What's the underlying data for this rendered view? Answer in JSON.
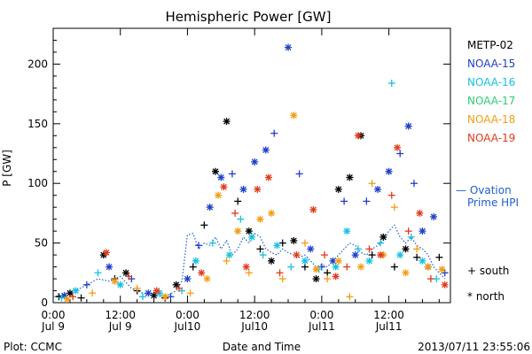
{
  "chart_data": {
    "type": "scatter",
    "title": "Hemispheric Power [GW]",
    "ylabel": "P [GW]",
    "xlabel": "Date and Time",
    "ylim": [
      0,
      230
    ],
    "yticks": [
      0,
      50,
      100,
      150,
      200
    ],
    "xlim_hours": [
      0,
      71
    ],
    "xticks": [
      {
        "hour": 0,
        "line1": "0:00",
        "line2": "Jul 9"
      },
      {
        "hour": 12,
        "line1": "12:00",
        "line2": "Jul 9"
      },
      {
        "hour": 24,
        "line1": "0:00",
        "line2": "Jul10"
      },
      {
        "hour": 36,
        "line1": "12:00",
        "line2": "Jul10"
      },
      {
        "hour": 48,
        "line1": "0:00",
        "line2": "Jul11"
      },
      {
        "hour": 60,
        "line1": "12:00",
        "line2": "Jul11"
      }
    ],
    "legend": {
      "placement": "right",
      "markers": [
        {
          "symbol": "+",
          "label": "south"
        },
        {
          "symbol": "*",
          "label": "north"
        }
      ],
      "ovation_label_line1": "— Ovation",
      "ovation_label_line2": "Prime HPI"
    },
    "series": [
      {
        "name": "METP-02",
        "color": "#000000",
        "points": [
          {
            "x": 1,
            "y": 5,
            "m": "+"
          },
          {
            "x": 3,
            "y": 8,
            "m": "*"
          },
          {
            "x": 5,
            "y": 4,
            "m": "+"
          },
          {
            "x": 9,
            "y": 40,
            "m": "*"
          },
          {
            "x": 11,
            "y": 20,
            "m": "+"
          },
          {
            "x": 13,
            "y": 25,
            "m": "*"
          },
          {
            "x": 15,
            "y": 10,
            "m": "+"
          },
          {
            "x": 18,
            "y": 6,
            "m": "*"
          },
          {
            "x": 20,
            "y": 4,
            "m": "+"
          },
          {
            "x": 22,
            "y": 15,
            "m": "*"
          },
          {
            "x": 25,
            "y": 30,
            "m": "+"
          },
          {
            "x": 27,
            "y": 65,
            "m": "+"
          },
          {
            "x": 29,
            "y": 110,
            "m": "*"
          },
          {
            "x": 31,
            "y": 152,
            "m": "*"
          },
          {
            "x": 33,
            "y": 85,
            "m": "+"
          },
          {
            "x": 35,
            "y": 60,
            "m": "*"
          },
          {
            "x": 37,
            "y": 45,
            "m": "+"
          },
          {
            "x": 39,
            "y": 35,
            "m": "*"
          },
          {
            "x": 41,
            "y": 50,
            "m": "+"
          },
          {
            "x": 43,
            "y": 52,
            "m": "*"
          },
          {
            "x": 45,
            "y": 30,
            "m": "+"
          },
          {
            "x": 47,
            "y": 20,
            "m": "*"
          },
          {
            "x": 49,
            "y": 25,
            "m": "+"
          },
          {
            "x": 51,
            "y": 95,
            "m": "*"
          },
          {
            "x": 53,
            "y": 105,
            "m": "*"
          },
          {
            "x": 55,
            "y": 140,
            "m": "*"
          },
          {
            "x": 57,
            "y": 40,
            "m": "+"
          },
          {
            "x": 59,
            "y": 55,
            "m": "*"
          },
          {
            "x": 61,
            "y": 30,
            "m": "+"
          },
          {
            "x": 63,
            "y": 45,
            "m": "*"
          },
          {
            "x": 65,
            "y": 38,
            "m": "+"
          },
          {
            "x": 67,
            "y": 30,
            "m": "*"
          },
          {
            "x": 69,
            "y": 38,
            "m": "+"
          }
        ]
      },
      {
        "name": "NOAA-15",
        "color": "#1f3fc8",
        "points": [
          {
            "x": 2,
            "y": 6,
            "m": "*"
          },
          {
            "x": 6,
            "y": 15,
            "m": "+"
          },
          {
            "x": 10,
            "y": 30,
            "m": "*"
          },
          {
            "x": 14,
            "y": 20,
            "m": "+"
          },
          {
            "x": 17,
            "y": 8,
            "m": "*"
          },
          {
            "x": 21,
            "y": 5,
            "m": "+"
          },
          {
            "x": 24,
            "y": 20,
            "m": "*"
          },
          {
            "x": 26,
            "y": 48,
            "m": "+"
          },
          {
            "x": 28,
            "y": 80,
            "m": "*"
          },
          {
            "x": 30,
            "y": 105,
            "m": "*"
          },
          {
            "x": 32,
            "y": 108,
            "m": "+"
          },
          {
            "x": 34,
            "y": 95,
            "m": "*"
          },
          {
            "x": 36,
            "y": 118,
            "m": "*"
          },
          {
            "x": 38,
            "y": 128,
            "m": "*"
          },
          {
            "x": 39.5,
            "y": 142,
            "m": "+"
          },
          {
            "x": 42,
            "y": 214,
            "m": "*"
          },
          {
            "x": 44,
            "y": 108,
            "m": "+"
          },
          {
            "x": 46,
            "y": 45,
            "m": "*"
          },
          {
            "x": 48,
            "y": 30,
            "m": "+"
          },
          {
            "x": 50,
            "y": 35,
            "m": "*"
          },
          {
            "x": 52,
            "y": 85,
            "m": "+"
          },
          {
            "x": 54,
            "y": 40,
            "m": "*"
          },
          {
            "x": 56,
            "y": 85,
            "m": "+"
          },
          {
            "x": 58,
            "y": 95,
            "m": "*"
          },
          {
            "x": 60,
            "y": 110,
            "m": "*"
          },
          {
            "x": 62,
            "y": 125,
            "m": "+"
          },
          {
            "x": 63.5,
            "y": 148,
            "m": "*"
          },
          {
            "x": 64.5,
            "y": 100,
            "m": "+"
          },
          {
            "x": 66,
            "y": 60,
            "m": "*"
          },
          {
            "x": 68,
            "y": 72,
            "m": "*"
          },
          {
            "x": 70,
            "y": 25,
            "m": "+"
          }
        ]
      },
      {
        "name": "NOAA-16",
        "color": "#17c1e0",
        "points": [
          {
            "x": 1.5,
            "y": 4,
            "m": "+"
          },
          {
            "x": 4,
            "y": 10,
            "m": "*"
          },
          {
            "x": 8,
            "y": 25,
            "m": "+"
          },
          {
            "x": 12,
            "y": 15,
            "m": "*"
          },
          {
            "x": 16,
            "y": 5,
            "m": "+"
          },
          {
            "x": 19,
            "y": 8,
            "m": "*"
          },
          {
            "x": 23,
            "y": 10,
            "m": "+"
          },
          {
            "x": 25.5,
            "y": 35,
            "m": "*"
          },
          {
            "x": 28.5,
            "y": 50,
            "m": "+"
          },
          {
            "x": 31.5,
            "y": 40,
            "m": "*"
          },
          {
            "x": 33.5,
            "y": 70,
            "m": "+"
          },
          {
            "x": 35.5,
            "y": 55,
            "m": "*"
          },
          {
            "x": 37.5,
            "y": 40,
            "m": "+"
          },
          {
            "x": 40,
            "y": 48,
            "m": "*"
          },
          {
            "x": 42.5,
            "y": 30,
            "m": "+"
          },
          {
            "x": 45,
            "y": 35,
            "m": "*"
          },
          {
            "x": 47.5,
            "y": 28,
            "m": "+"
          },
          {
            "x": 50.5,
            "y": 30,
            "m": "*"
          },
          {
            "x": 52.5,
            "y": 60,
            "m": "*"
          },
          {
            "x": 54.5,
            "y": 45,
            "m": "+"
          },
          {
            "x": 56.5,
            "y": 35,
            "m": "*"
          },
          {
            "x": 58.5,
            "y": 50,
            "m": "+"
          },
          {
            "x": 60.5,
            "y": 184,
            "m": "+"
          },
          {
            "x": 62,
            "y": 40,
            "m": "*"
          },
          {
            "x": 64,
            "y": 55,
            "m": "+"
          },
          {
            "x": 66,
            "y": 35,
            "m": "*"
          },
          {
            "x": 68.5,
            "y": 20,
            "m": "+"
          }
        ]
      },
      {
        "name": "NOAA-17",
        "color": "#2ecc71",
        "points": []
      },
      {
        "name": "NOAA-18",
        "color": "#f39c12",
        "points": [
          {
            "x": 2.5,
            "y": 3,
            "m": "*"
          },
          {
            "x": 7,
            "y": 8,
            "m": "+"
          },
          {
            "x": 11,
            "y": 18,
            "m": "*"
          },
          {
            "x": 15,
            "y": 12,
            "m": "+"
          },
          {
            "x": 20,
            "y": 5,
            "m": "*"
          },
          {
            "x": 24.5,
            "y": 8,
            "m": "+"
          },
          {
            "x": 27.5,
            "y": 20,
            "m": "*"
          },
          {
            "x": 29.5,
            "y": 90,
            "m": "*"
          },
          {
            "x": 31,
            "y": 35,
            "m": "+"
          },
          {
            "x": 33,
            "y": 60,
            "m": "*"
          },
          {
            "x": 35,
            "y": 25,
            "m": "+"
          },
          {
            "x": 37,
            "y": 70,
            "m": "*"
          },
          {
            "x": 39,
            "y": 75,
            "m": "*"
          },
          {
            "x": 41,
            "y": 20,
            "m": "+"
          },
          {
            "x": 43,
            "y": 157,
            "m": "*"
          },
          {
            "x": 45,
            "y": 50,
            "m": "+"
          },
          {
            "x": 47,
            "y": 28,
            "m": "*"
          },
          {
            "x": 49,
            "y": 20,
            "m": "+"
          },
          {
            "x": 51,
            "y": 35,
            "m": "*"
          },
          {
            "x": 53,
            "y": 5,
            "m": "+"
          },
          {
            "x": 55,
            "y": 30,
            "m": "*"
          },
          {
            "x": 57,
            "y": 100,
            "m": "+"
          },
          {
            "x": 59,
            "y": 40,
            "m": "*"
          },
          {
            "x": 61,
            "y": 80,
            "m": "+"
          },
          {
            "x": 63,
            "y": 25,
            "m": "*"
          },
          {
            "x": 65,
            "y": 45,
            "m": "+"
          },
          {
            "x": 67,
            "y": 30,
            "m": "*"
          },
          {
            "x": 69.5,
            "y": 28,
            "m": "*"
          }
        ]
      },
      {
        "name": "NOAA-19",
        "color": "#e03a1c",
        "points": [
          {
            "x": 3.5,
            "y": 5,
            "m": "+"
          },
          {
            "x": 9.5,
            "y": 42,
            "m": "*"
          },
          {
            "x": 13.5,
            "y": 22,
            "m": "+"
          },
          {
            "x": 18.5,
            "y": 10,
            "m": "*"
          },
          {
            "x": 22.5,
            "y": 12,
            "m": "+"
          },
          {
            "x": 26.5,
            "y": 25,
            "m": "*"
          },
          {
            "x": 30.5,
            "y": 97,
            "m": "*"
          },
          {
            "x": 32.5,
            "y": 75,
            "m": "+"
          },
          {
            "x": 34.5,
            "y": 30,
            "m": "*"
          },
          {
            "x": 36.5,
            "y": 95,
            "m": "*"
          },
          {
            "x": 38.5,
            "y": 105,
            "m": "*"
          },
          {
            "x": 40.5,
            "y": 25,
            "m": "+"
          },
          {
            "x": 43.5,
            "y": 40,
            "m": "*"
          },
          {
            "x": 46.5,
            "y": 78,
            "m": "*"
          },
          {
            "x": 48.5,
            "y": 40,
            "m": "+"
          },
          {
            "x": 50.5,
            "y": 22,
            "m": "*"
          },
          {
            "x": 52.5,
            "y": 30,
            "m": "+"
          },
          {
            "x": 54.5,
            "y": 140,
            "m": "*"
          },
          {
            "x": 56.5,
            "y": 45,
            "m": "+"
          },
          {
            "x": 58.5,
            "y": 40,
            "m": "*"
          },
          {
            "x": 60.5,
            "y": 90,
            "m": "+"
          },
          {
            "x": 61.5,
            "y": 130,
            "m": "*"
          },
          {
            "x": 63.5,
            "y": 60,
            "m": "+"
          },
          {
            "x": 65.5,
            "y": 75,
            "m": "*"
          },
          {
            "x": 67.5,
            "y": 20,
            "m": "+"
          },
          {
            "x": 70,
            "y": 15,
            "m": "*"
          }
        ]
      }
    ],
    "ovation_hpi": {
      "name": "Ovation Prime HPI",
      "color": "#1f5fcf",
      "points": [
        [
          0,
          5
        ],
        [
          2,
          7
        ],
        [
          4,
          10
        ],
        [
          6,
          15
        ],
        [
          8,
          20
        ],
        [
          10,
          18
        ],
        [
          12,
          22
        ],
        [
          14,
          12
        ],
        [
          16,
          8
        ],
        [
          18,
          6
        ],
        [
          20,
          5
        ],
        [
          22,
          10
        ],
        [
          23,
          18
        ],
        [
          24,
          57
        ],
        [
          25,
          58
        ],
        [
          26,
          45
        ],
        [
          27,
          50
        ],
        [
          28,
          48
        ],
        [
          29,
          55
        ],
        [
          30,
          45
        ],
        [
          31,
          52
        ],
        [
          32,
          40
        ],
        [
          33,
          45
        ],
        [
          34,
          55
        ],
        [
          35,
          50
        ],
        [
          36,
          58
        ],
        [
          37,
          55
        ],
        [
          38,
          45
        ],
        [
          39,
          42
        ],
        [
          40,
          40
        ],
        [
          41,
          45
        ],
        [
          42,
          42
        ],
        [
          43,
          40
        ],
        [
          44,
          38
        ],
        [
          45,
          40
        ],
        [
          46,
          35
        ],
        [
          47,
          30
        ],
        [
          48,
          32
        ],
        [
          49,
          30
        ],
        [
          50,
          35
        ],
        [
          51,
          40
        ],
        [
          52,
          45
        ],
        [
          53,
          50
        ],
        [
          54,
          48
        ],
        [
          55,
          42
        ],
        [
          56,
          40
        ],
        [
          57,
          45
        ],
        [
          58,
          48
        ],
        [
          59,
          52
        ],
        [
          60,
          60
        ],
        [
          61,
          65
        ],
        [
          62,
          55
        ],
        [
          63,
          50
        ],
        [
          64,
          55
        ],
        [
          65,
          48
        ],
        [
          66,
          45
        ],
        [
          67,
          40
        ],
        [
          68,
          30
        ],
        [
          69,
          25
        ],
        [
          70,
          20
        ]
      ]
    }
  },
  "footer": {
    "left": "Plot: CCMC",
    "right": "2013/07/11  23:55:06"
  }
}
